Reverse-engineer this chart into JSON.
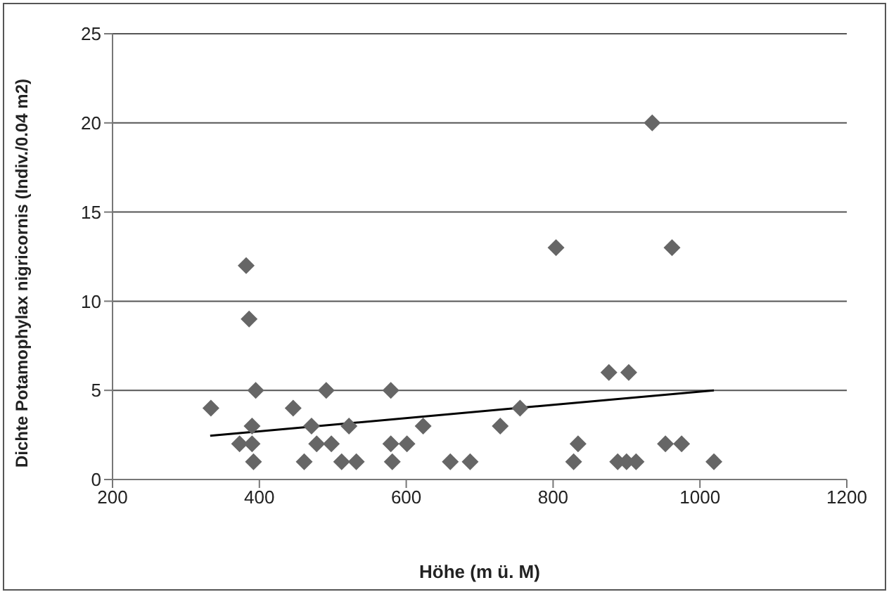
{
  "chart_data": {
    "type": "scatter",
    "xlabel": "Höhe (m ü. M)",
    "ylabel": "Dichte Potamophylax nigricornis (Indiv./0.04 m2)",
    "xlim": [
      200,
      1200
    ],
    "xticks": [
      200,
      400,
      600,
      800,
      1000,
      1200
    ],
    "ylim": [
      0,
      25
    ],
    "yticks": [
      0,
      5,
      10,
      15,
      20,
      25
    ],
    "grid": "y",
    "legend": false,
    "series": [
      {
        "marker": "diamond",
        "color": "#666666",
        "x": [
          334,
          382,
          386,
          395,
          446,
          491,
          579,
          390,
          471,
          522,
          623,
          373,
          390,
          478,
          498,
          579,
          601,
          392,
          461,
          512,
          532,
          581,
          660,
          687,
          804,
          962,
          935,
          876,
          903,
          755,
          728,
          834,
          953,
          975,
          828,
          888,
          900,
          913,
          1019
        ],
        "values": [
          4,
          12,
          9,
          5,
          4,
          5,
          5,
          3,
          3,
          3,
          3,
          2,
          2,
          2,
          2,
          2,
          2,
          1,
          1,
          1,
          1,
          1,
          1,
          1,
          13,
          13,
          20,
          6,
          6,
          4,
          3,
          2,
          2,
          2,
          1,
          1,
          1,
          1,
          1
        ]
      },
      {
        "type": "line",
        "color": "#000000",
        "x": [
          333,
          1019
        ],
        "values": [
          2.45,
          5.0
        ]
      }
    ]
  }
}
